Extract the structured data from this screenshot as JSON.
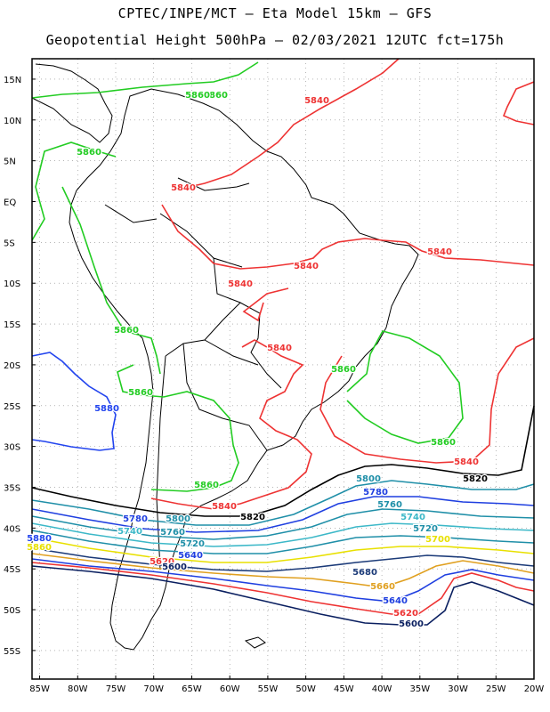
{
  "title": {
    "line1": "CPTEC/INPE/MCT –  Eta Model 15km – GFS",
    "line2": "Geopotential Height 500hPa – 02/03/2021 12UTC fct=175h"
  },
  "axes": {
    "lat_ticks": [
      "15N",
      "10N",
      "5N",
      "EQ",
      "5S",
      "10S",
      "15S",
      "20S",
      "25S",
      "30S",
      "35S",
      "40S",
      "45S",
      "50S",
      "55S"
    ],
    "lon_ticks": [
      "85W",
      "80W",
      "75W",
      "70W",
      "65W",
      "60W",
      "55W",
      "50W",
      "45W",
      "40W",
      "35W",
      "30W",
      "25W",
      "20W"
    ],
    "lat_range": [
      17.5,
      -58.5
    ],
    "lon_range": [
      -86,
      -20
    ]
  },
  "contour_labels": [
    {
      "text": "5860",
      "color": "#22cc22"
    },
    {
      "text": "5860",
      "color": "#22cc22"
    },
    {
      "text": "5860",
      "color": "#22cc22"
    },
    {
      "text": "5860",
      "color": "#22cc22"
    },
    {
      "text": "5860",
      "color": "#22cc22"
    },
    {
      "text": "5860",
      "color": "#22cc22"
    },
    {
      "text": "5860",
      "color": "#22cc22"
    },
    {
      "text": "5860",
      "color": "#22cc22"
    },
    {
      "text": "5840",
      "color": "#ee3333"
    },
    {
      "text": "5840",
      "color": "#ee3333"
    },
    {
      "text": "5840",
      "color": "#ee3333"
    },
    {
      "text": "5840",
      "color": "#ee3333"
    },
    {
      "text": "5840",
      "color": "#ee3333"
    },
    {
      "text": "5840",
      "color": "#ee3333"
    },
    {
      "text": "5840",
      "color": "#ee3333"
    },
    {
      "text": "5840",
      "color": "#ee3333"
    },
    {
      "text": "5880",
      "color": "#2244ee"
    },
    {
      "text": "5820",
      "color": "#000000"
    },
    {
      "text": "5820",
      "color": "#000000"
    },
    {
      "text": "5800",
      "color": "#1f8fa8"
    },
    {
      "text": "5780",
      "color": "#1f3fe0"
    },
    {
      "text": "5760",
      "color": "#1f8fa8"
    },
    {
      "text": "5740",
      "color": "#3cb8c8"
    },
    {
      "text": "5720",
      "color": "#1f8fa8"
    },
    {
      "text": "5700",
      "color": "#e8e000"
    },
    {
      "text": "5780",
      "color": "#1f3fe0"
    },
    {
      "text": "5740",
      "color": "#3cb8c8"
    },
    {
      "text": "5760",
      "color": "#1f8fa8"
    },
    {
      "text": "5720",
      "color": "#1f8fa8"
    },
    {
      "text": "5680",
      "color": "#1b3a78"
    },
    {
      "text": "5660",
      "color": "#e0a020"
    },
    {
      "text": "5640",
      "color": "#1f3fe0"
    },
    {
      "text": "5620",
      "color": "#ee3333"
    },
    {
      "text": "5600",
      "color": "#0a1f60"
    },
    {
      "text": "5800",
      "color": "#1f8fa8"
    },
    {
      "text": "5880",
      "color": "#2244ee"
    },
    {
      "text": "5860",
      "color": "#e8e000"
    },
    {
      "text": "5620",
      "color": "#ee3333"
    },
    {
      "text": "5600",
      "color": "#0a1f60"
    },
    {
      "text": "5640",
      "color": "#1f3fe0"
    }
  ]
}
